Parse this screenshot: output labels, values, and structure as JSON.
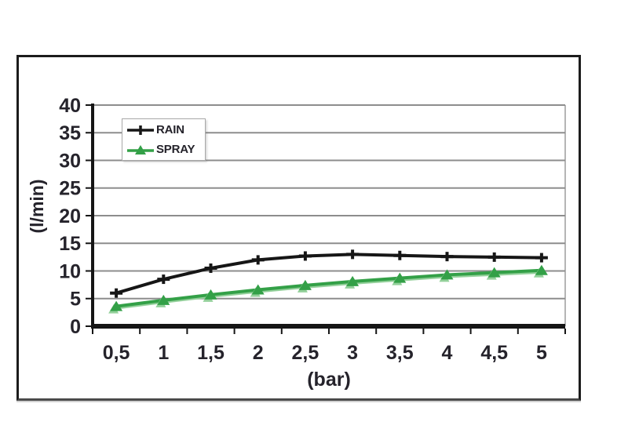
{
  "chart_data": {
    "type": "line",
    "title": "",
    "xlabel": "(bar)",
    "ylabel": "(l/min)",
    "categories": [
      "0,5",
      "1",
      "1,5",
      "2",
      "2,5",
      "3",
      "3,5",
      "4",
      "4,5",
      "5"
    ],
    "x_values": [
      0.5,
      1,
      1.5,
      2,
      2.5,
      3,
      3.5,
      4,
      4.5,
      5
    ],
    "series": [
      {
        "name": "RAIN",
        "marker": "plus",
        "color": "#161616",
        "shadow": "",
        "values": [
          6,
          8.5,
          10.5,
          12,
          12.7,
          13,
          12.8,
          12.6,
          12.5,
          12.4
        ]
      },
      {
        "name": "SPRAY",
        "marker": "triangle",
        "color": "#33a047",
        "shadow": "#93d09a",
        "values": [
          3.6,
          4.7,
          5.7,
          6.6,
          7.4,
          8.1,
          8.7,
          9.3,
          9.7,
          10.1
        ]
      }
    ],
    "ylim": [
      0,
      40
    ],
    "yticks": [
      "0",
      "5",
      "10",
      "15",
      "20",
      "25",
      "30",
      "35",
      "40"
    ],
    "grid": "horizontal",
    "legend_position": "top-left-inside",
    "colors": {
      "grid": "#8d8d8d",
      "axis": "#151515",
      "plot_border": "#b5b5b5",
      "text": "#25232b"
    }
  }
}
